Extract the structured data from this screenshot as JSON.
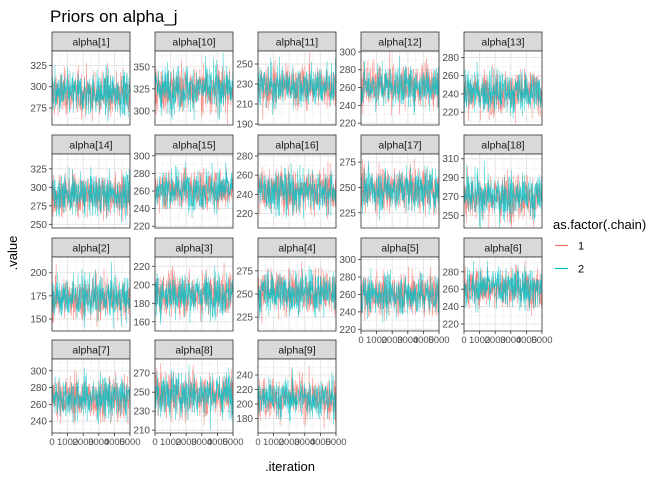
{
  "chart_data": {
    "type": "line",
    "title": "Priors on alpha_j",
    "xlabel": ".iteration",
    "ylabel": ".value",
    "x_range": [
      0,
      5000
    ],
    "x_ticks": [
      0,
      1000,
      2000,
      3000,
      4000,
      5000
    ],
    "x_tick_labels": [
      "0",
      "1000",
      "2000",
      "3000",
      "4000",
      "5000"
    ],
    "grid": true,
    "legend": {
      "title": "as.factor(.chain)",
      "placement": "right",
      "entries": [
        {
          "label": "1",
          "color": "#F8766D"
        },
        {
          "label": "2",
          "color": "#00BFC4"
        }
      ]
    },
    "panels": [
      {
        "label": "alpha[1]",
        "ylim": [
          255,
          342
        ],
        "yticks": [
          275,
          300,
          325
        ],
        "mean": 292,
        "sd": 13
      },
      {
        "label": "alpha[10]",
        "ylim": [
          284,
          368
        ],
        "yticks": [
          300,
          325,
          350
        ],
        "mean": 325,
        "sd": 13
      },
      {
        "label": "alpha[11]",
        "ylim": [
          189,
          263
        ],
        "yticks": [
          190,
          210,
          230,
          250
        ],
        "mean": 228,
        "sd": 11
      },
      {
        "label": "alpha[12]",
        "ylim": [
          218,
          301
        ],
        "yticks": [
          220,
          240,
          260,
          280,
          300
        ],
        "mean": 262,
        "sd": 12
      },
      {
        "label": "alpha[13]",
        "ylim": [
          206,
          287
        ],
        "yticks": [
          220,
          240,
          260,
          280
        ],
        "mean": 242,
        "sd": 12
      },
      {
        "label": "alpha[14]",
        "ylim": [
          245,
          345
        ],
        "yticks": [
          250,
          275,
          300,
          325
        ],
        "mean": 290,
        "sd": 14
      },
      {
        "label": "alpha[15]",
        "ylim": [
          218,
          302
        ],
        "yticks": [
          220,
          240,
          260,
          280,
          300
        ],
        "mean": 262,
        "sd": 12
      },
      {
        "label": "alpha[16]",
        "ylim": [
          205,
          282
        ],
        "yticks": [
          220,
          240,
          260,
          280
        ],
        "mean": 244,
        "sd": 12
      },
      {
        "label": "alpha[17]",
        "ylim": [
          210,
          283
        ],
        "yticks": [
          225,
          250,
          275
        ],
        "mean": 248,
        "sd": 11
      },
      {
        "label": "alpha[18]",
        "ylim": [
          237,
          315
        ],
        "yticks": [
          250,
          270,
          290,
          310
        ],
        "mean": 270,
        "sd": 12
      },
      {
        "label": "alpha[2]",
        "ylim": [
          137,
          217
        ],
        "yticks": [
          150,
          175,
          200
        ],
        "mean": 173,
        "sd": 12
      },
      {
        "label": "alpha[3]",
        "ylim": [
          150,
          230
        ],
        "yticks": [
          160,
          180,
          200,
          220
        ],
        "mean": 190,
        "sd": 12
      },
      {
        "label": "alpha[4]",
        "ylim": [
          210,
          290
        ],
        "yticks": [
          225,
          250,
          275
        ],
        "mean": 252,
        "sd": 12
      },
      {
        "label": "alpha[5]",
        "ylim": [
          218,
          303
        ],
        "yticks": [
          220,
          240,
          260,
          280,
          300
        ],
        "mean": 260,
        "sd": 12
      },
      {
        "label": "alpha[6]",
        "ylim": [
          212,
          297
        ],
        "yticks": [
          220,
          240,
          260,
          280
        ],
        "mean": 262,
        "sd": 12
      },
      {
        "label": "alpha[7]",
        "ylim": [
          226,
          314
        ],
        "yticks": [
          240,
          260,
          280,
          300
        ],
        "mean": 268,
        "sd": 13
      },
      {
        "label": "alpha[8]",
        "ylim": [
          207,
          285
        ],
        "yticks": [
          210,
          230,
          250,
          270
        ],
        "mean": 248,
        "sd": 12
      },
      {
        "label": "alpha[9]",
        "ylim": [
          160,
          262
        ],
        "yticks": [
          180,
          200,
          220,
          240
        ],
        "mean": 208,
        "sd": 14
      }
    ]
  }
}
